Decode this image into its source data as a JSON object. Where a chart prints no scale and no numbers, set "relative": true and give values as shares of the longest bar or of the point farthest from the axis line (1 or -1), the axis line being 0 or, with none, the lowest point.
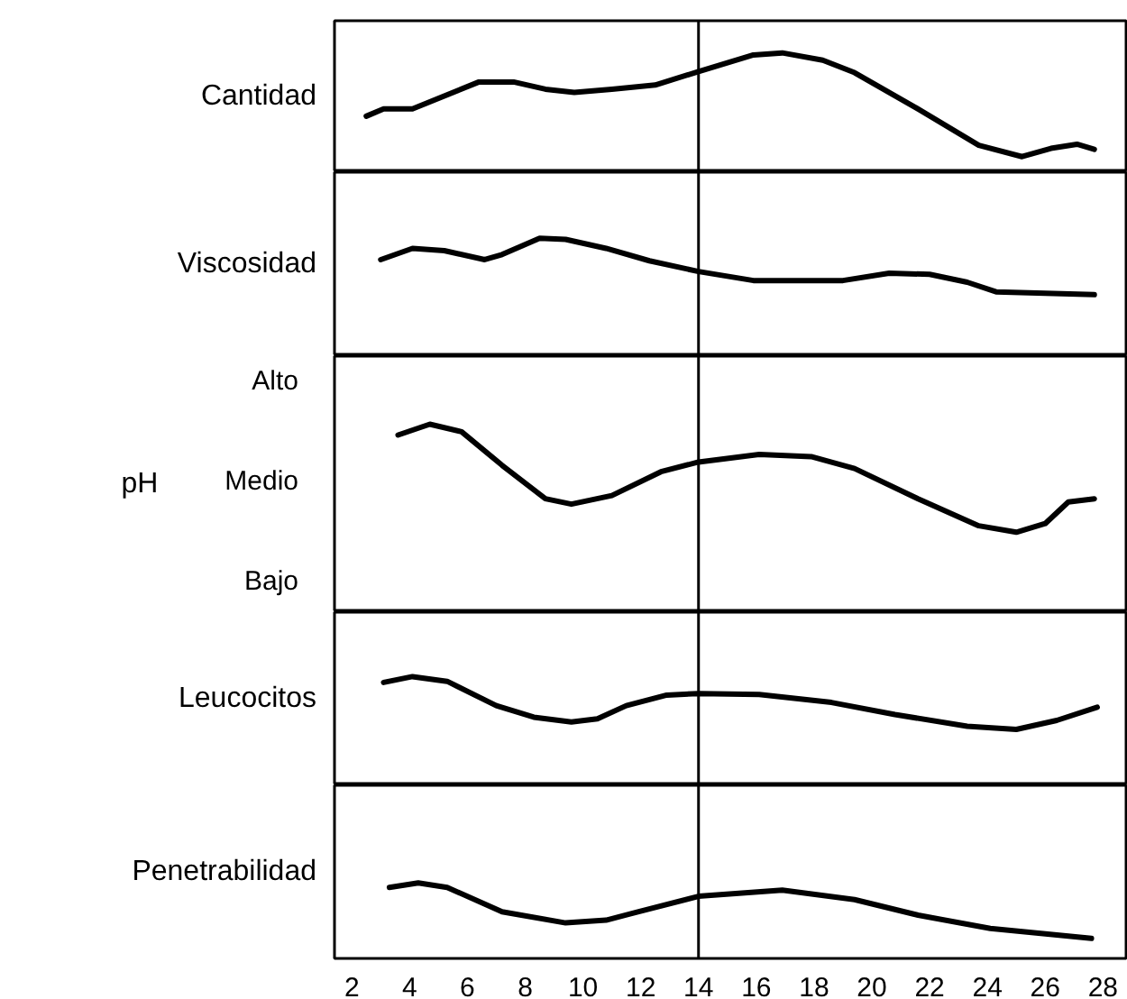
{
  "chart_data": [
    {
      "type": "line",
      "ylabel": "Cantidad",
      "relative": true,
      "tick_labels": false,
      "xlim": [
        1.4,
        28.8
      ],
      "xticks": [
        2,
        4,
        6,
        8,
        10,
        12,
        14,
        16,
        18,
        20,
        22,
        24,
        26,
        28
      ],
      "x": [
        2.5,
        3.1,
        4.1,
        6.4,
        7.6,
        8.7,
        9.7,
        11.0,
        12.5,
        14,
        15.9,
        16.9,
        18.3,
        19.4,
        21.6,
        23.7,
        25.2,
        26.2,
        27.1,
        27.7
      ],
      "series": [
        {
          "color": "#000000",
          "values": [
            0.39,
            0.46,
            0.46,
            0.72,
            0.72,
            0.65,
            0.62,
            0.65,
            0.69,
            0.82,
            0.98,
            1,
            0.93,
            0.81,
            0.46,
            0.11,
            0,
            0.08,
            0.12,
            0.07
          ]
        }
      ],
      "ref_lines": [
        {
          "axis": "x",
          "value": 14,
          "color": "#000000"
        }
      ]
    },
    {
      "type": "line",
      "ylabel": "Viscosidad",
      "relative": true,
      "tick_labels": false,
      "xlim": [
        1.4,
        28.8
      ],
      "xticks": [
        2,
        4,
        6,
        8,
        10,
        12,
        14,
        16,
        18,
        20,
        22,
        24,
        26,
        28
      ],
      "x": [
        3.0,
        4.1,
        5.2,
        6.6,
        7.2,
        8.5,
        9.4,
        10.8,
        12.3,
        14,
        15.9,
        19.0,
        20.6,
        22,
        23.3,
        24.3,
        27.7
      ],
      "series": [
        {
          "color": "#000000",
          "values": [
            0.62,
            0.82,
            0.78,
            0.62,
            0.71,
            1,
            0.98,
            0.82,
            0.6,
            0.41,
            0.25,
            0.25,
            0.38,
            0.36,
            0.22,
            0.05,
            0
          ]
        }
      ],
      "ref_lines": [
        {
          "axis": "x",
          "value": 14,
          "color": "#000000"
        }
      ]
    },
    {
      "type": "line",
      "ylabel": "pH",
      "relative": true,
      "tick_labels": false,
      "xlim": [
        1.4,
        28.8
      ],
      "xticks": [
        2,
        4,
        6,
        8,
        10,
        12,
        14,
        16,
        18,
        20,
        22,
        24,
        26,
        28
      ],
      "annotations": [
        "Alto",
        "Medio",
        "Bajo"
      ],
      "x": [
        3.6,
        4.7,
        5.8,
        7.2,
        8.7,
        9.6,
        11.0,
        12.7,
        14,
        16.1,
        17.9,
        19.4,
        21.6,
        23.7,
        25.0,
        26.0,
        26.8,
        27.7
      ],
      "series": [
        {
          "color": "#000000",
          "values": [
            0.9,
            1,
            0.93,
            0.62,
            0.31,
            0.26,
            0.34,
            0.56,
            0.65,
            0.72,
            0.7,
            0.59,
            0.31,
            0.06,
            0,
            0.08,
            0.28,
            0.31
          ]
        }
      ],
      "ref_lines": [
        {
          "axis": "x",
          "value": 14,
          "color": "#000000"
        }
      ]
    },
    {
      "type": "line",
      "ylabel": "Leucocitos",
      "relative": true,
      "tick_labels": false,
      "xlim": [
        1.4,
        28.8
      ],
      "xticks": [
        2,
        4,
        6,
        8,
        10,
        12,
        14,
        16,
        18,
        20,
        22,
        24,
        26,
        28
      ],
      "x": [
        3.1,
        4.1,
        5.3,
        7.0,
        8.3,
        9.6,
        10.5,
        11.5,
        12.9,
        14,
        16.1,
        18.6,
        20.8,
        23.3,
        25.0,
        26.4,
        27.8
      ],
      "series": [
        {
          "color": "#000000",
          "values": [
            0.89,
            1,
            0.91,
            0.45,
            0.23,
            0.14,
            0.2,
            0.45,
            0.65,
            0.68,
            0.66,
            0.51,
            0.28,
            0.06,
            0,
            0.17,
            0.42
          ]
        }
      ],
      "ref_lines": [
        {
          "axis": "x",
          "value": 14,
          "color": "#000000"
        }
      ]
    },
    {
      "type": "line",
      "ylabel": "Penetrabilidad",
      "relative": true,
      "tick_labels": "x",
      "xlim": [
        1.4,
        28.8
      ],
      "xticks": [
        2,
        4,
        6,
        8,
        10,
        12,
        14,
        16,
        18,
        20,
        22,
        24,
        26,
        28
      ],
      "x": [
        3.3,
        4.3,
        5.3,
        7.2,
        9.4,
        10.8,
        11.9,
        14,
        16.9,
        19.4,
        21.6,
        24.1,
        27.6
      ],
      "series": [
        {
          "color": "#000000",
          "values": [
            0.92,
            1,
            0.92,
            0.48,
            0.28,
            0.33,
            0.48,
            0.76,
            0.87,
            0.7,
            0.42,
            0.18,
            0
          ]
        }
      ],
      "ref_lines": [
        {
          "axis": "x",
          "value": 14,
          "color": "#000000"
        }
      ]
    }
  ]
}
